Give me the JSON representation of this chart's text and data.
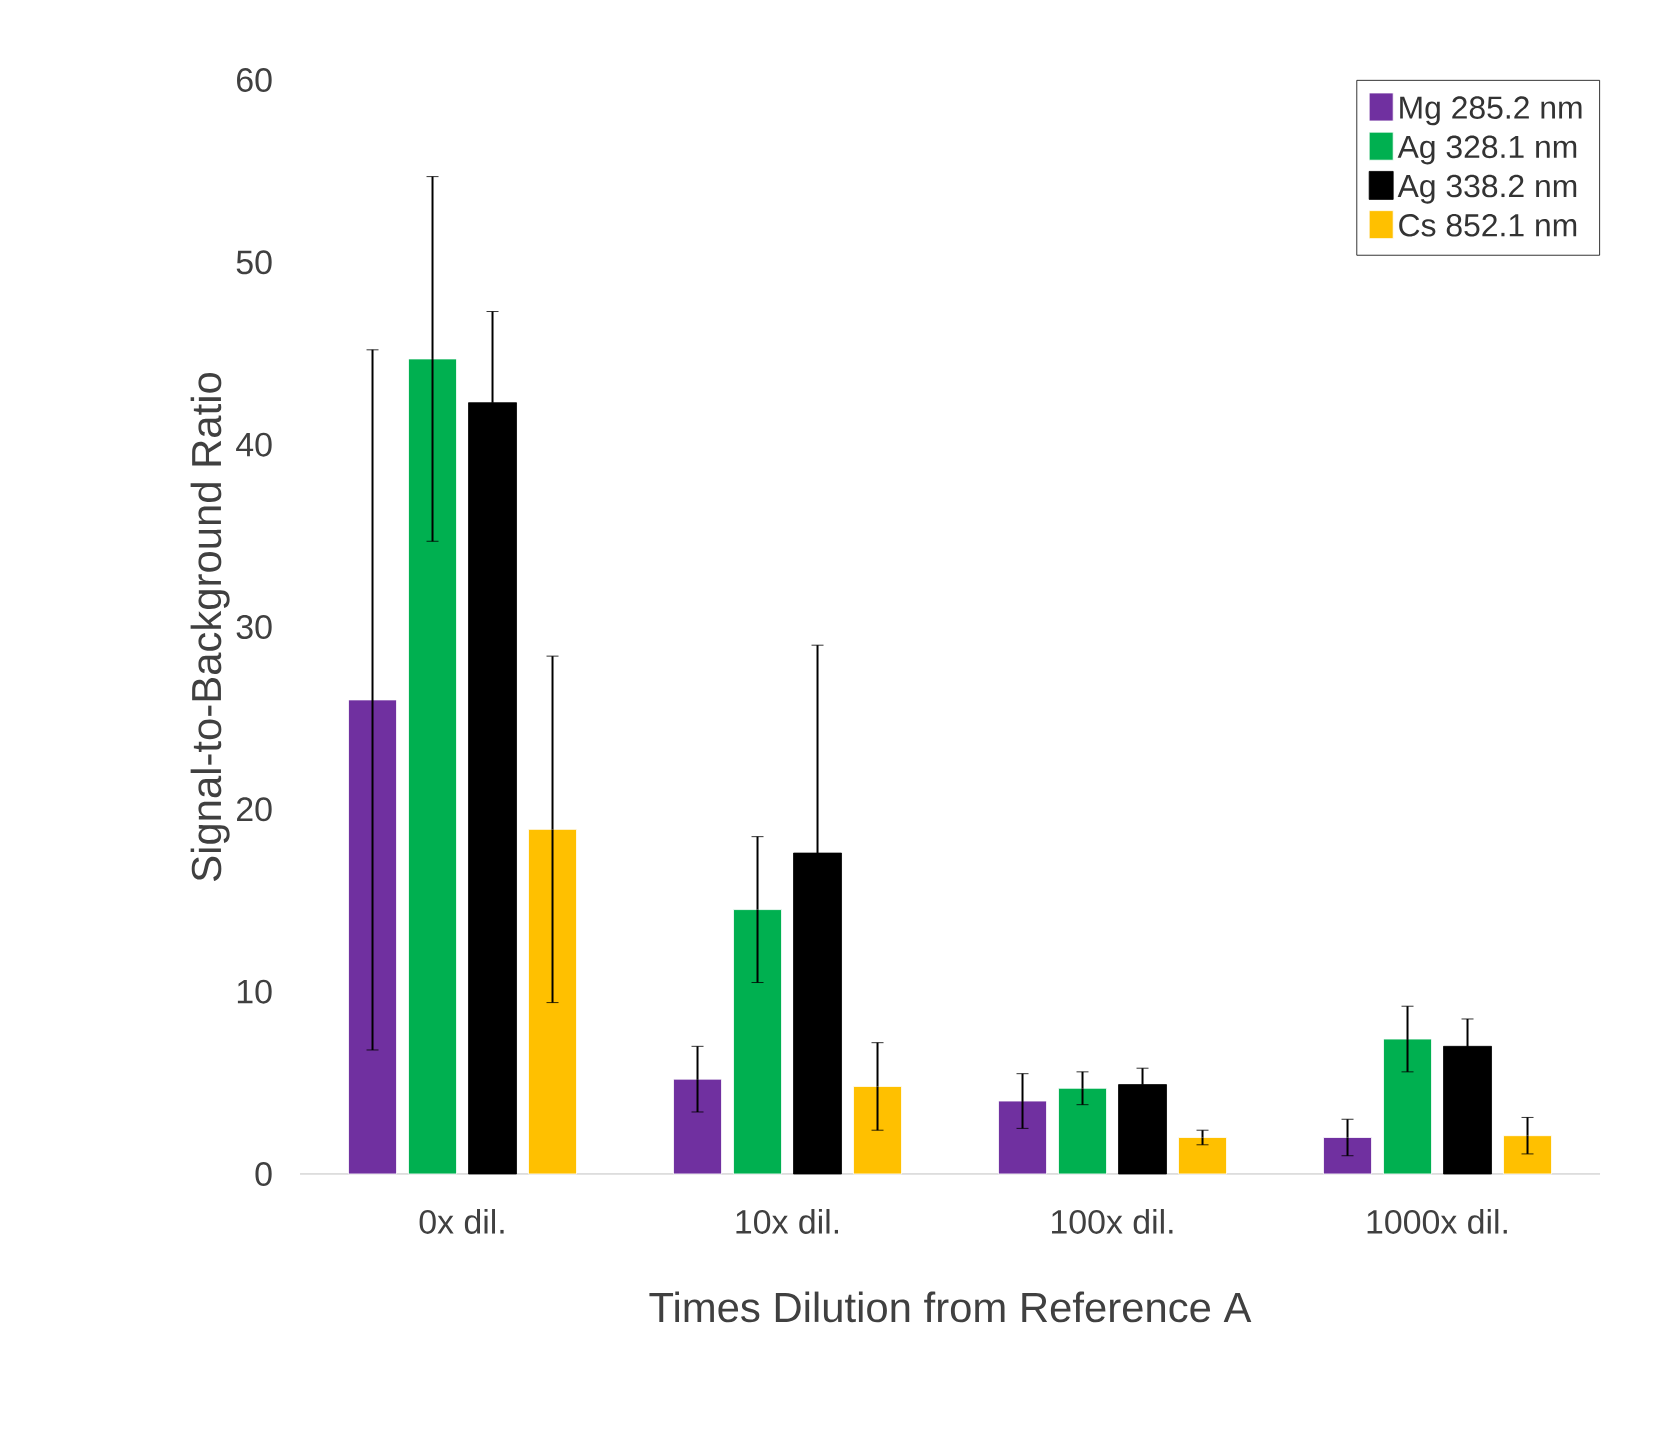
{
  "chart_data": {
    "type": "bar",
    "xlabel": "Times Dilution from Reference A",
    "ylabel": "Signal-to-Background Ratio",
    "categories": [
      "0x dil.",
      "10x dil.",
      "100x dil.",
      "1000x dil."
    ],
    "series": [
      {
        "name": "Mg 285.2 nm",
        "color": "#7030a0",
        "values": [
          26.0,
          5.2,
          4.0,
          2.0
        ],
        "errors": [
          19.2,
          1.8,
          1.5,
          1.0
        ]
      },
      {
        "name": "Ag 328.1 nm",
        "color": "#00b050",
        "values": [
          44.7,
          14.5,
          4.7,
          7.4
        ],
        "errors": [
          10.0,
          4.0,
          0.9,
          1.8
        ]
      },
      {
        "name": "Ag 338.2 nm",
        "color": "#000000",
        "values": [
          42.3,
          17.6,
          4.9,
          7.0
        ],
        "errors": [
          5.0,
          11.4,
          0.9,
          1.5
        ]
      },
      {
        "name": "Cs 852.1 nm",
        "color": "#ffc000",
        "values": [
          18.9,
          4.8,
          2.0,
          2.1
        ],
        "errors": [
          9.5,
          2.4,
          0.4,
          1.0
        ]
      }
    ],
    "ylim": [
      0,
      60
    ],
    "yticks": [
      0,
      10,
      20,
      30,
      40,
      50,
      60
    ],
    "grid": false,
    "legend": "top right"
  }
}
